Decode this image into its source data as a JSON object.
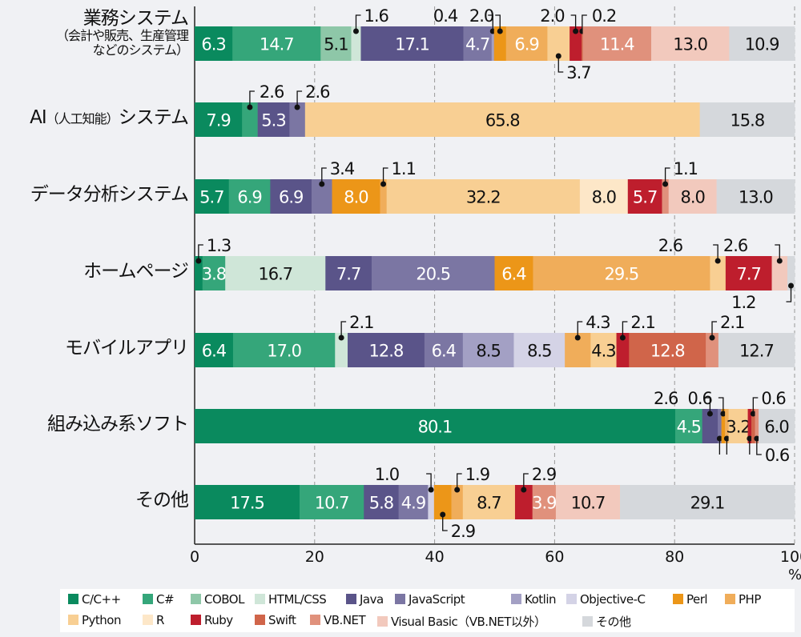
{
  "chart_data": {
    "type": "bar",
    "orientation": "horizontal",
    "stacked": true,
    "title": "",
    "xlabel": "",
    "ylabel": "",
    "unit": "%",
    "xlim": [
      0,
      100
    ],
    "xticks": [
      0,
      20,
      40,
      60,
      80,
      100
    ],
    "grid": "vertical dashed",
    "legend_placement": "bottom",
    "series_names": [
      "C/C++",
      "C#",
      "COBOL",
      "HTML/CSS",
      "Java",
      "JavaScript",
      "Kotlin",
      "Objective-C",
      "Perl",
      "PHP",
      "Python",
      "R",
      "Ruby",
      "Swift",
      "VB.NET",
      "Visual Basic（VB.NET以外）",
      "その他"
    ],
    "colors": [
      "#0a8a5e",
      "#35a67a",
      "#8ec7a8",
      "#cfe6d8",
      "#5a5489",
      "#7b76a3",
      "#a3a0c4",
      "#d4d3e6",
      "#ec9618",
      "#f0ad5a",
      "#f8cf93",
      "#fde7c8",
      "#be1e2d",
      "#d0654a",
      "#e0917c",
      "#f2c9bd",
      "#d5d8dc"
    ],
    "categories": [
      {
        "label": "業務システム",
        "sub": "（会計や販売、生産管理",
        "sub2": "などのシステム）"
      },
      {
        "label": "AI",
        "small": "（人工知能）",
        "label2": "システム"
      },
      {
        "label": "データ分析システム"
      },
      {
        "label": "ホームページ"
      },
      {
        "label": "モバイルアプリ"
      },
      {
        "label": "組み込み系ソフト"
      },
      {
        "label": "その他"
      }
    ],
    "rows": [
      [
        6.3,
        14.7,
        5.1,
        1.6,
        17.1,
        4.7,
        0.4,
        0,
        2.0,
        6.9,
        3.7,
        0,
        2.0,
        0.2,
        11.4,
        13.0,
        10.9
      ],
      [
        7.9,
        2.6,
        0,
        0,
        5.3,
        2.6,
        0,
        0,
        0,
        0,
        65.8,
        0,
        0,
        0,
        0,
        0,
        15.8
      ],
      [
        5.7,
        6.9,
        0,
        0,
        6.9,
        3.4,
        0,
        0,
        8.0,
        1.1,
        32.2,
        8.0,
        5.7,
        0,
        1.1,
        8.0,
        13.0
      ],
      [
        1.3,
        3.8,
        0,
        16.7,
        7.7,
        20.5,
        0,
        0,
        6.4,
        29.5,
        2.6,
        0,
        7.7,
        0,
        0,
        2.6,
        1.2
      ],
      [
        6.4,
        17.0,
        0,
        2.1,
        12.8,
        6.4,
        8.5,
        8.5,
        0,
        4.3,
        4.3,
        0,
        2.1,
        12.8,
        2.1,
        0,
        12.7
      ],
      [
        80.1,
        4.5,
        0,
        0,
        2.6,
        0.6,
        0,
        0,
        0.6,
        0.6,
        3.2,
        0,
        0.6,
        0.6,
        0.6,
        0,
        6.0
      ],
      [
        17.5,
        10.7,
        0,
        0,
        5.8,
        4.9,
        0,
        1.0,
        2.9,
        1.9,
        8.7,
        0,
        2.9,
        0,
        3.9,
        10.7,
        29.1
      ]
    ]
  }
}
